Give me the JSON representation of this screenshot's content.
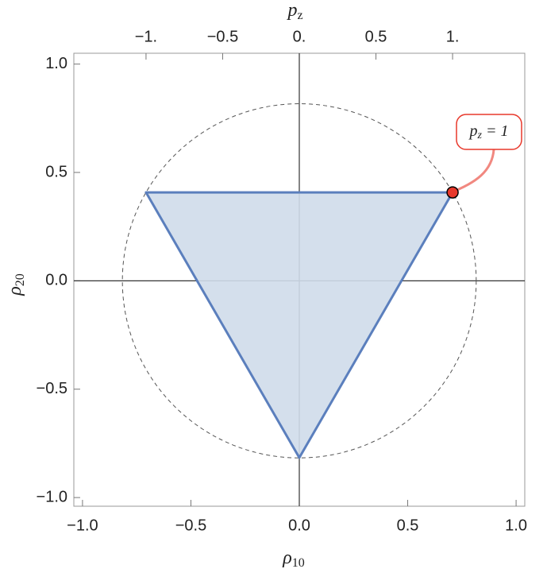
{
  "chart_data": {
    "type": "polygon",
    "x_label": {
      "main": "ρ",
      "sub": "10"
    },
    "y_label": {
      "main": "ρ",
      "sub": "20"
    },
    "x2_label": {
      "main": "p",
      "sub": "z"
    },
    "annotation": {
      "main": "p",
      "sub": "z",
      "rest": " = 1"
    },
    "x": [
      -0.707,
      0.707,
      0
    ],
    "y": [
      0.408,
      0.408,
      -0.816
    ],
    "color": "#5b7fbd",
    "fill": "#cfdbea",
    "circle_radius": 0.816,
    "highlight": {
      "x": 0.707,
      "y": 0.408,
      "color": "#e8382b"
    },
    "xlim": [
      -1.04,
      1.04
    ],
    "ylim": [
      -1.04,
      1.05
    ],
    "x2lim": [
      -1.471,
      1.471
    ],
    "xticks": [
      {
        "value": -1,
        "label": "−1.0"
      },
      {
        "value": -0.5,
        "label": "−0.5"
      },
      {
        "value": 0,
        "label": "0.0"
      },
      {
        "value": 0.5,
        "label": "0.5"
      },
      {
        "value": 1,
        "label": "1.0"
      }
    ],
    "yticks": [
      {
        "value": -1,
        "label": "−1.0"
      },
      {
        "value": -0.5,
        "label": "−0.5"
      },
      {
        "value": 0,
        "label": "0.0"
      },
      {
        "value": 0.5,
        "label": "0.5"
      },
      {
        "value": 1,
        "label": "1.0"
      }
    ],
    "x2ticks": [
      {
        "value": -1,
        "label": "−1."
      },
      {
        "value": -0.5,
        "label": "−0.5"
      },
      {
        "value": 0,
        "label": "0."
      },
      {
        "value": 0.5,
        "label": "0.5"
      },
      {
        "value": 1,
        "label": "1."
      }
    ]
  }
}
